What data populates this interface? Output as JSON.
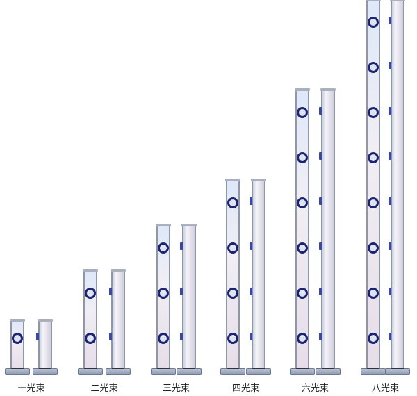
{
  "products": [
    {
      "label": "一光束",
      "beams": 1
    },
    {
      "label": "二光束",
      "beams": 2
    },
    {
      "label": "三光束",
      "beams": 3
    },
    {
      "label": "四光束",
      "beams": 4
    },
    {
      "label": "六光束",
      "beams": 6
    },
    {
      "label": "八光束",
      "beams": 8
    }
  ],
  "colors": {
    "lens": "#1b2470",
    "tab": "#3a46a8",
    "frame": "#8e96a8"
  }
}
